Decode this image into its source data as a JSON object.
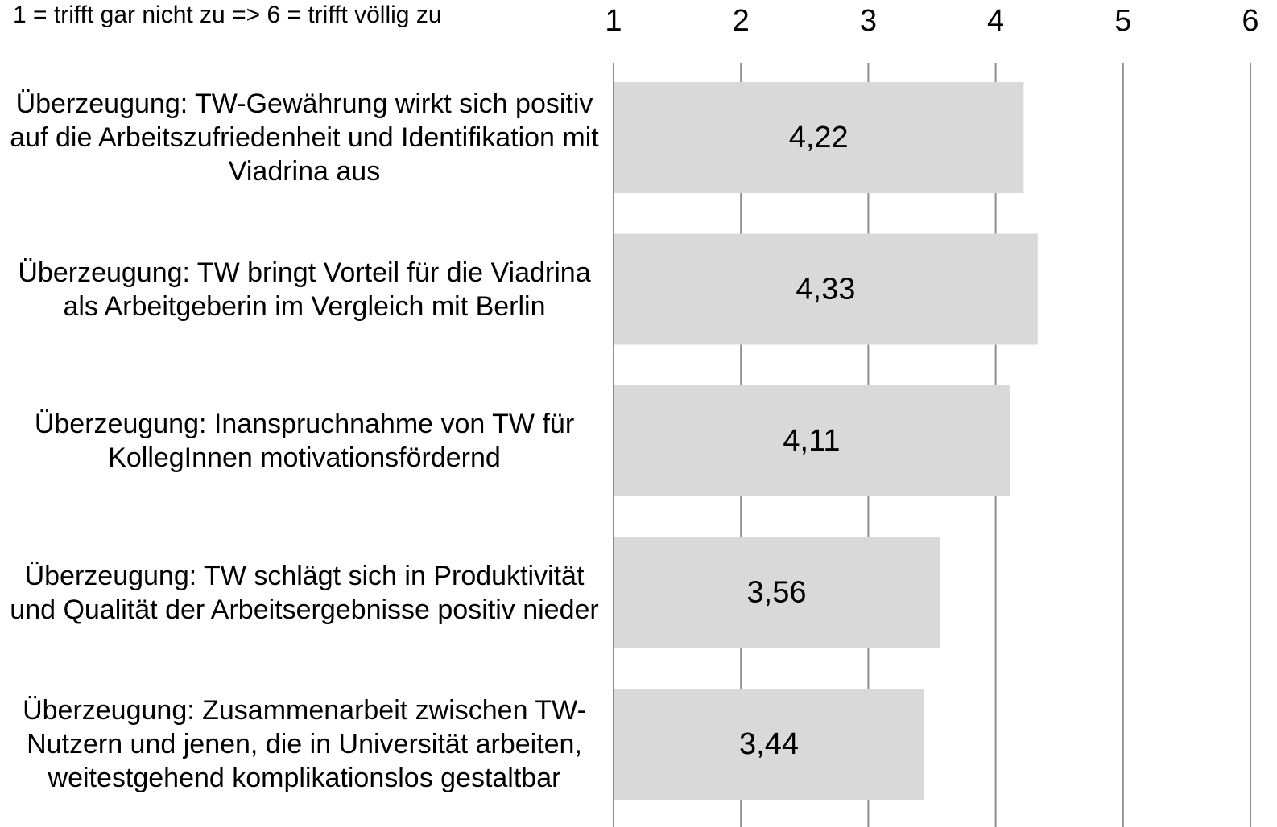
{
  "chart_data": {
    "type": "barh",
    "subtitle": "1 = trifft gar nicht zu => 6 = trifft völlig zu",
    "categories": [
      "Überzeugung: TW-Gewährung wirkt sich positiv auf die Arbeitszufriedenheit und Identifikation mit Viadrina aus",
      "Überzeugung: TW bringt Vorteil für die Viadrina als Arbeitgeberin im Vergleich mit Berlin",
      "Überzeugung: Inanspruchnahme von TW für KollegInnen motivationsfördernd",
      "Überzeugung: TW schlägt sich in Produktivität und Qualität der Arbeitsergebnisse positiv nieder",
      "Überzeugung: Zusammenarbeit zwischen TW-Nutzern und jenen, die in Universität arbeiten, weitestgehend komplikationslos gestaltbar"
    ],
    "values": [
      4.22,
      4.33,
      4.11,
      3.56,
      3.44
    ],
    "value_labels": [
      "4,22",
      "4,33",
      "4,11",
      "3,56",
      "3,44"
    ],
    "color": "#d9d9d9",
    "xlim": [
      1,
      6
    ],
    "xticks": [
      1,
      2,
      3,
      4,
      5,
      6
    ],
    "grid": true
  }
}
